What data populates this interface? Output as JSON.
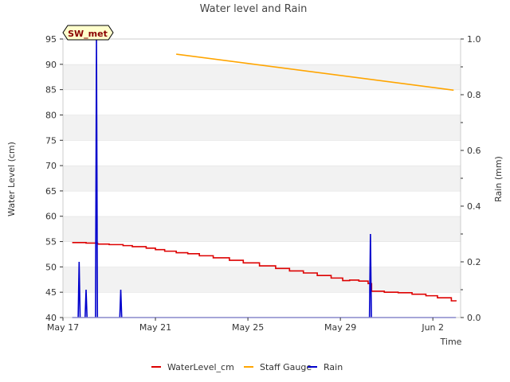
{
  "chart_data": {
    "type": "line",
    "title": "Water level and Rain",
    "site_label": "SW_met",
    "xlabel": "Time",
    "ylabel_left": "Water Level (cm)",
    "ylabel_right": "Rain (mm)",
    "x_range_days": [
      0,
      17.2
    ],
    "x_ticks": [
      {
        "day": 0,
        "label": "May 17"
      },
      {
        "day": 4,
        "label": "May 21"
      },
      {
        "day": 8,
        "label": "May 25"
      },
      {
        "day": 12,
        "label": "May 29"
      },
      {
        "day": 16,
        "label": "Jun 2"
      }
    ],
    "y_left": {
      "min": 40,
      "max": 95,
      "ticks": [
        40,
        45,
        50,
        55,
        60,
        65,
        70,
        75,
        80,
        85,
        90,
        95
      ]
    },
    "y_right": {
      "min": 0,
      "max": 1.0,
      "ticks": [
        0.0,
        0.2,
        0.4,
        0.6,
        0.8,
        1.0
      ],
      "tick_labels": [
        "0.0",
        "0.2",
        "0.4",
        "0.6",
        "0.8",
        "1.0"
      ]
    },
    "series": [
      {
        "name": "WaterLevel_cm",
        "axis": "left",
        "color": "#dd0000",
        "style": "step",
        "points": [
          [
            0.4,
            54.8
          ],
          [
            1.0,
            54.7
          ],
          [
            1.5,
            54.5
          ],
          [
            2.0,
            54.4
          ],
          [
            2.6,
            54.2
          ],
          [
            3.0,
            54.0
          ],
          [
            3.6,
            53.7
          ],
          [
            4.0,
            53.4
          ],
          [
            4.4,
            53.1
          ],
          [
            4.9,
            52.8
          ],
          [
            5.4,
            52.6
          ],
          [
            5.9,
            52.2
          ],
          [
            6.5,
            51.8
          ],
          [
            7.2,
            51.3
          ],
          [
            7.8,
            50.8
          ],
          [
            8.5,
            50.2
          ],
          [
            9.2,
            49.7
          ],
          [
            9.8,
            49.2
          ],
          [
            10.4,
            48.8
          ],
          [
            11.0,
            48.3
          ],
          [
            11.6,
            47.8
          ],
          [
            12.1,
            47.3
          ],
          [
            12.4,
            47.4
          ],
          [
            12.8,
            47.2
          ],
          [
            13.2,
            46.7
          ],
          [
            13.35,
            45.2
          ],
          [
            13.9,
            45.0
          ],
          [
            14.5,
            44.9
          ],
          [
            15.1,
            44.6
          ],
          [
            15.7,
            44.3
          ],
          [
            16.2,
            43.9
          ],
          [
            16.8,
            43.3
          ],
          [
            17.0,
            43.2
          ]
        ]
      },
      {
        "name": "Staff Gauge",
        "axis": "left",
        "color": "#ffa500",
        "points": [
          [
            4.9,
            92.0
          ],
          [
            16.9,
            84.9
          ]
        ]
      },
      {
        "name": "Rain",
        "axis": "right",
        "color": "#0000cc",
        "baseline": [
          0.4,
          17.0
        ],
        "spikes": [
          [
            0.7,
            0.2
          ],
          [
            1.0,
            0.1
          ],
          [
            1.45,
            1.0
          ],
          [
            2.5,
            0.1
          ],
          [
            13.3,
            0.3
          ]
        ]
      }
    ],
    "legend": [
      "WaterLevel_cm",
      "Staff Gauge",
      "Rain"
    ],
    "legend_position": "bottom-center",
    "grid": "horizontal-bands"
  }
}
